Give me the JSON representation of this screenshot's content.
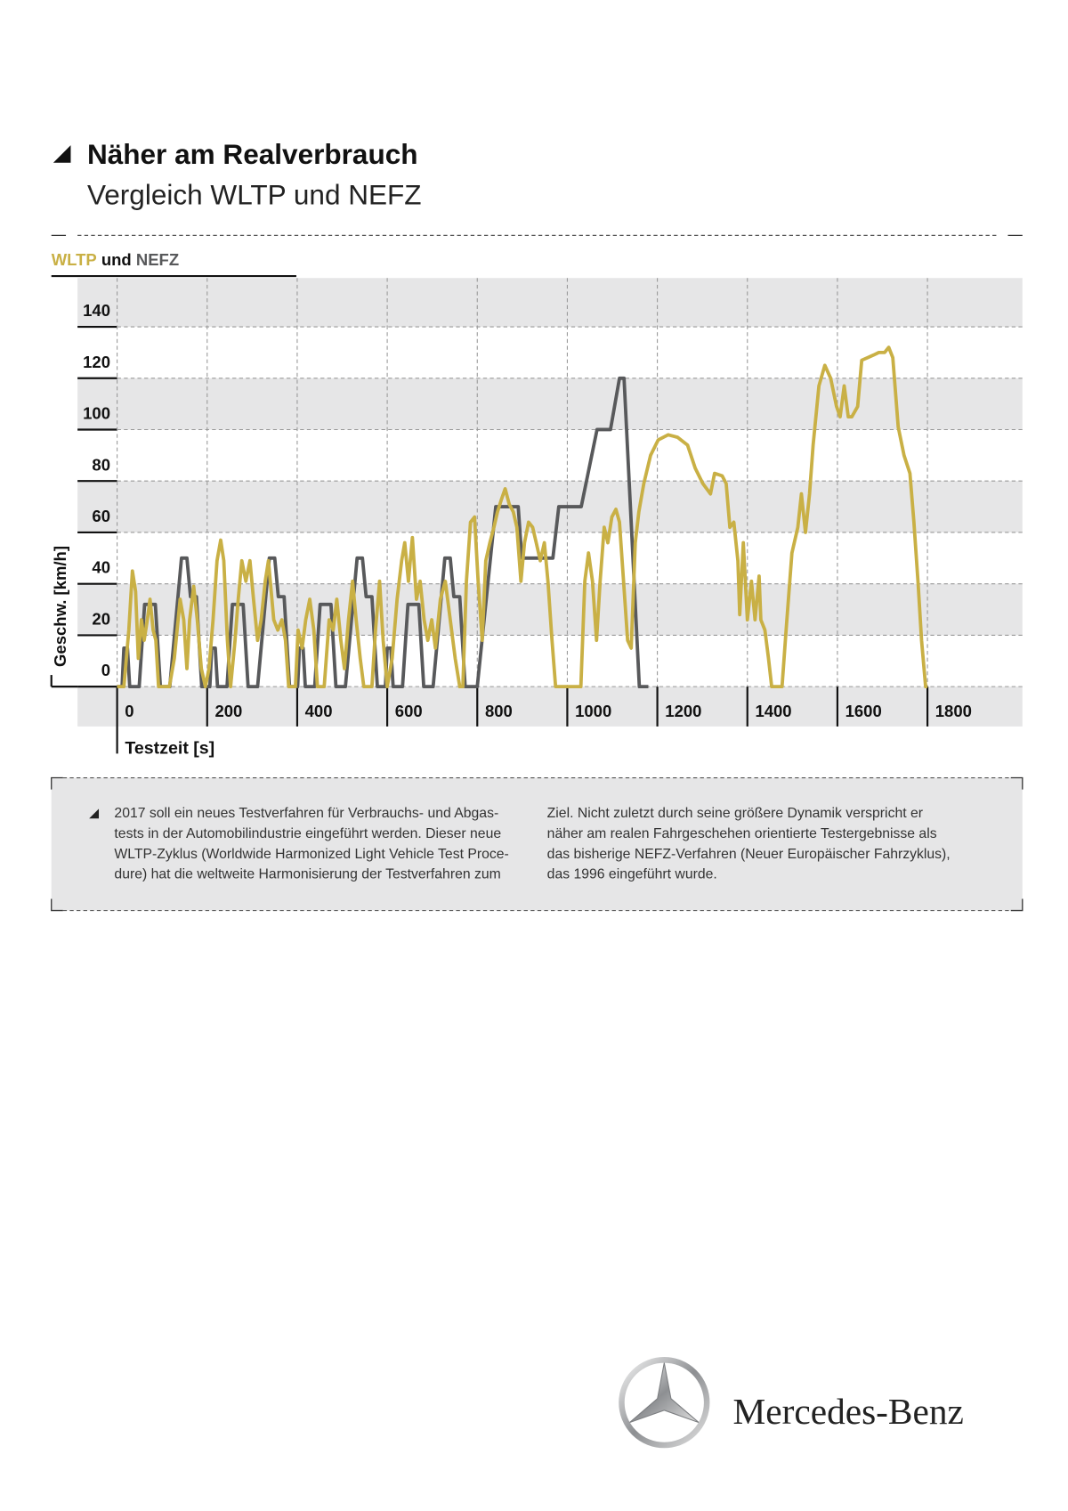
{
  "chart_data": {
    "type": "line",
    "title": "Näher am Realverbrauch",
    "subtitle": "Vergleich WLTP und NEFZ",
    "legend_joiner": "und",
    "xlabel": "Testzeit [s]",
    "ylabel": "Geschw. [km/h]",
    "xlim": [
      -88,
      2011
    ],
    "ylim": [
      -15.5,
      159
    ],
    "xticks": [
      0,
      200,
      400,
      600,
      800,
      1000,
      1200,
      1400,
      1600,
      1800
    ],
    "yticks": [
      0,
      20,
      40,
      60,
      80,
      100,
      120,
      140
    ],
    "grid": true,
    "series": [
      {
        "name": "WLTP",
        "color": "#c9b045",
        "x": [
          0,
          15,
          26,
          34,
          41,
          47,
          54,
          60,
          67,
          73,
          80,
          86,
          92,
          116,
          127,
          140,
          148,
          155,
          161,
          170,
          178,
          187,
          196,
          204,
          213,
          222,
          230,
          237,
          245,
          252,
          262,
          269,
          277,
          286,
          295,
          303,
          312,
          320,
          329,
          336,
          348,
          357,
          366,
          374,
          381,
          396,
          402,
          411,
          419,
          428,
          437,
          445,
          460,
          471,
          480,
          488,
          497,
          505,
          514,
          523,
          531,
          540,
          548,
          566,
          574,
          583,
          591,
          600,
          611,
          622,
          632,
          639,
          647,
          656,
          665,
          673,
          682,
          690,
          699,
          707,
          718,
          729,
          740,
          751,
          761,
          768,
          776,
          785,
          794,
          802,
          811,
          819,
          828,
          837,
          845,
          854,
          862,
          871,
          880,
          888,
          897,
          905,
          914,
          923,
          931,
          940,
          949,
          957,
          966,
          974,
          1030,
          1039,
          1047,
          1056,
          1065,
          1073,
          1082,
          1090,
          1099,
          1108,
          1116,
          1125,
          1134,
          1142,
          1151,
          1159,
          1170,
          1185,
          1202,
          1224,
          1245,
          1267,
          1284,
          1301,
          1318,
          1327,
          1344,
          1353,
          1361,
          1370,
          1379,
          1383,
          1391,
          1400,
          1409,
          1417,
          1426,
          1430,
          1439,
          1447,
          1454,
          1477,
          1486,
          1499,
          1512,
          1520,
          1529,
          1538,
          1546,
          1559,
          1572,
          1585,
          1598,
          1606,
          1615,
          1624,
          1632,
          1645,
          1654,
          1667,
          1680,
          1692,
          1705,
          1714,
          1723,
          1735,
          1748,
          1761,
          1770,
          1779,
          1787,
          1796,
          1800
        ],
        "values": [
          0,
          0,
          22,
          45,
          37,
          11,
          26,
          18,
          26,
          34,
          22,
          18,
          0,
          0,
          11,
          34,
          26,
          7,
          26,
          39,
          26,
          7,
          0,
          7,
          26,
          49,
          57,
          49,
          18,
          0,
          18,
          34,
          49,
          41,
          49,
          34,
          18,
          26,
          41,
          49,
          26,
          22,
          26,
          18,
          0,
          0,
          22,
          15,
          26,
          34,
          22,
          0,
          0,
          26,
          22,
          34,
          18,
          7,
          26,
          41,
          26,
          11,
          0,
          0,
          22,
          41,
          18,
          0,
          11,
          34,
          49,
          56,
          41,
          58,
          34,
          41,
          26,
          18,
          26,
          15,
          34,
          41,
          26,
          11,
          0,
          0,
          41,
          64,
          66,
          41,
          18,
          49,
          56,
          62,
          68,
          73,
          77,
          71,
          68,
          62,
          41,
          56,
          64,
          62,
          56,
          49,
          56,
          41,
          18,
          0,
          0,
          41,
          52,
          41,
          18,
          41,
          62,
          56,
          66,
          69,
          64,
          41,
          18,
          15,
          56,
          68,
          79,
          90,
          96,
          98,
          97,
          94,
          85,
          79,
          75,
          83,
          82,
          79,
          62,
          64,
          49,
          28,
          56,
          26,
          41,
          26,
          43,
          26,
          22,
          11,
          0,
          0,
          22,
          52,
          62,
          75,
          60,
          75,
          94,
          117,
          125,
          120,
          109,
          105,
          117,
          105,
          105,
          109,
          127,
          128,
          129,
          130,
          130,
          132,
          128,
          101,
          90,
          83,
          64,
          41,
          18,
          0,
          0
        ]
      },
      {
        "name": "NEFZ",
        "color": "#58595b",
        "x": [
          0,
          11,
          15,
          23,
          28,
          49,
          61,
          85,
          96,
          117,
          143,
          155,
          163,
          176,
          188,
          195,
          206,
          210,
          218,
          223,
          244,
          256,
          280,
          291,
          312,
          338,
          350,
          358,
          371,
          383,
          390,
          401,
          405,
          413,
          418,
          439,
          451,
          475,
          486,
          507,
          533,
          545,
          553,
          566,
          578,
          585,
          596,
          600,
          608,
          613,
          634,
          646,
          670,
          681,
          702,
          728,
          740,
          748,
          761,
          773,
          780,
          800,
          841,
          891,
          899,
          968,
          981,
          1031,
          1066,
          1096,
          1116,
          1126,
          1160,
          1180
        ],
        "values": [
          0,
          0,
          15,
          15,
          0,
          0,
          32,
          32,
          0,
          0,
          50,
          50,
          35,
          35,
          0,
          0,
          0,
          15,
          15,
          0,
          0,
          32,
          32,
          0,
          0,
          50,
          50,
          35,
          35,
          0,
          0,
          0,
          15,
          15,
          0,
          0,
          32,
          32,
          0,
          0,
          50,
          50,
          35,
          35,
          0,
          0,
          0,
          15,
          15,
          0,
          0,
          32,
          32,
          0,
          0,
          50,
          50,
          35,
          35,
          0,
          0,
          0,
          70,
          70,
          50,
          50,
          70,
          70,
          100,
          100,
          120,
          120,
          0,
          0
        ]
      }
    ]
  },
  "info_box": {
    "columns": [
      [
        "2017 soll ein neues Testverfahren für Verbrauchs- und Abgas-",
        "tests in der Automobilindustrie eingeführt werden. Dieser neue",
        "WLTP-Zyklus (Worldwide Harmonized Light Vehicle Test Proce-",
        "dure) hat die weltweite Harmonisierung der Testverfahren zum"
      ],
      [
        "Ziel. Nicht zuletzt durch seine größere Dynamik verspricht er",
        "näher am realen Fahrgeschehen orientierte Testergebnisse als",
        "das bisherige NEFZ-Verfahren (Neuer Europäischer Fahrzyklus),",
        "das 1996 eingeführt wurde."
      ]
    ]
  },
  "logo": {
    "brand": "Mercedes-Benz"
  }
}
